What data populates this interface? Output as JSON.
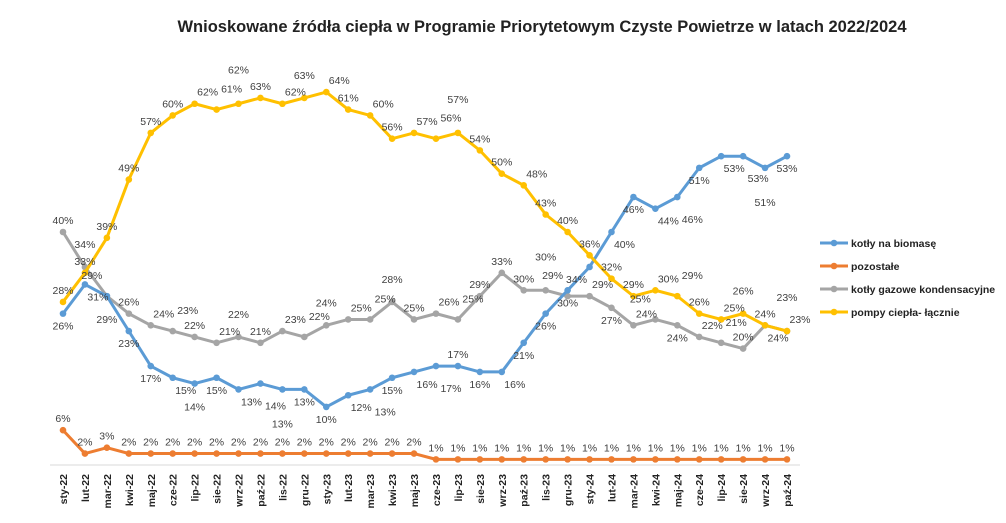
{
  "chart_data": {
    "type": "line",
    "title": "Wnioskowane źródła ciepła w Programie Priorytetowym Czyste Powietrze w latach 2022/2024",
    "xlabel": "",
    "ylabel": "",
    "ylim": [
      0,
      70
    ],
    "grid": false,
    "legend_position": "right",
    "value_format": "percent",
    "categories": [
      "sty-22",
      "lut-22",
      "mar-22",
      "kwi-22",
      "maj-22",
      "cze-22",
      "lip-22",
      "sie-22",
      "wrz-22",
      "paź-22",
      "lis-22",
      "gru-22",
      "sty-23",
      "lut-23",
      "mar-23",
      "kwi-23",
      "maj-23",
      "cze-23",
      "lip-23",
      "sie-23",
      "wrz-23",
      "paź-23",
      "lis-23",
      "gru-23",
      "sty-24",
      "lut-24",
      "mar-24",
      "kwi-24",
      "maj-24",
      "cze-24",
      "lip-24",
      "sie-24",
      "wrz-24",
      "paź-24"
    ],
    "series": [
      {
        "name": "kotły na biomasę",
        "color": "#5b9bd5",
        "label_pos": "below",
        "values": [
          26,
          31,
          29,
          23,
          17,
          15,
          14,
          15,
          13,
          14,
          13,
          13,
          10,
          12,
          13,
          15,
          16,
          17,
          17,
          16,
          16,
          21,
          26,
          30,
          34,
          40,
          46,
          44,
          46,
          51,
          53,
          53,
          51,
          53
        ]
      },
      {
        "name": "pozostałe",
        "color": "#ed7d31",
        "label_pos": "above",
        "values": [
          6,
          2,
          3,
          2,
          2,
          2,
          2,
          2,
          2,
          2,
          2,
          2,
          2,
          2,
          2,
          2,
          2,
          1,
          1,
          1,
          1,
          1,
          1,
          1,
          1,
          1,
          1,
          1,
          1,
          1,
          1,
          1,
          1,
          1
        ]
      },
      {
        "name": "kotły gazowe kondensacyjne",
        "color": "#a5a5a5",
        "label_pos": "above",
        "values": [
          40,
          34,
          29,
          26,
          24,
          23,
          22,
          21,
          22,
          21,
          23,
          22,
          24,
          25,
          25,
          28,
          25,
          26,
          25,
          29,
          33,
          30,
          30,
          29,
          29,
          27,
          24,
          25,
          24,
          22,
          21,
          20,
          24,
          23
        ]
      },
      {
        "name": "pompy ciepła- łącznie",
        "color": "#ffc000",
        "label_pos": "above",
        "values": [
          28,
          33,
          39,
          49,
          57,
          60,
          62,
          61,
          62,
          63,
          62,
          63,
          64,
          61,
          60,
          56,
          57,
          56,
          57,
          54,
          50,
          48,
          43,
          40,
          36,
          32,
          29,
          30,
          29,
          26,
          25,
          26,
          24,
          23
        ]
      }
    ]
  }
}
